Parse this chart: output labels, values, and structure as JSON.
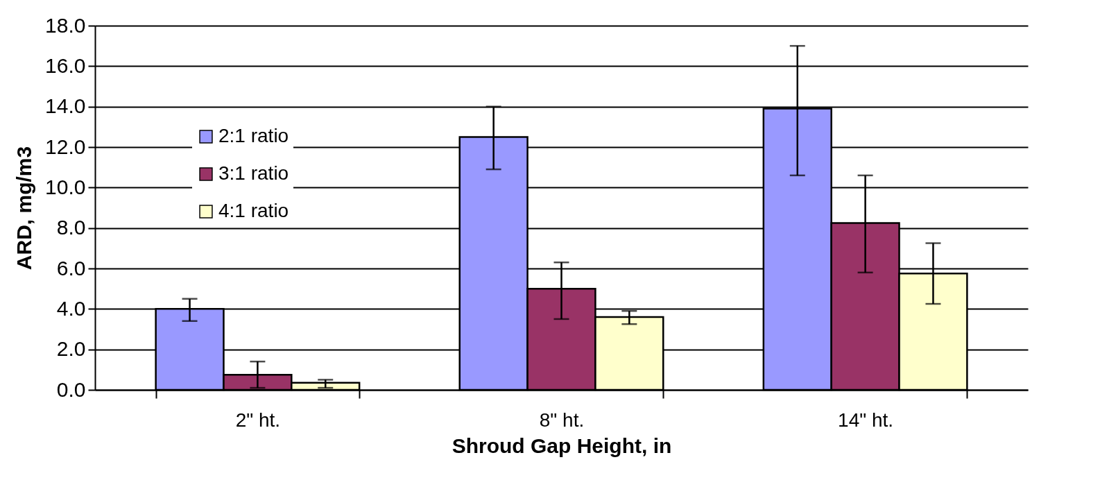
{
  "chart_data": {
    "type": "bar",
    "xlabel": "Shroud Gap Height, in",
    "ylabel": "ARD, mg/m3",
    "categories": [
      "2\" ht.",
      "8\" ht.",
      "14\" ht."
    ],
    "series": [
      {
        "name": "2:1 ratio",
        "color": "#9999ff",
        "values": [
          4.0,
          12.5,
          13.9
        ],
        "errors": [
          [
            3.4,
            4.5
          ],
          [
            10.9,
            14.0
          ],
          [
            10.6,
            17.0
          ]
        ]
      },
      {
        "name": "3:1 ratio",
        "color": "#993366",
        "values": [
          0.75,
          5.0,
          8.25
        ],
        "errors": [
          [
            0.1,
            1.4
          ],
          [
            3.5,
            6.3
          ],
          [
            5.8,
            10.6
          ]
        ]
      },
      {
        "name": "4:1 ratio",
        "color": "#ffffcc",
        "values": [
          0.35,
          3.6,
          5.75
        ],
        "errors": [
          [
            0.1,
            0.5
          ],
          [
            3.25,
            3.9
          ],
          [
            4.25,
            7.25
          ]
        ]
      }
    ],
    "ylim": [
      0,
      18
    ],
    "yticks": [
      {
        "value": 0,
        "label": "0.0"
      },
      {
        "value": 2,
        "label": "2.0"
      },
      {
        "value": 4,
        "label": "4.0"
      },
      {
        "value": 6,
        "label": "6.0"
      },
      {
        "value": 8,
        "label": "8.0"
      },
      {
        "value": 10,
        "label": "10.0"
      },
      {
        "value": 12,
        "label": "12.0"
      },
      {
        "value": 14,
        "label": "14.0"
      },
      {
        "value": 16,
        "label": "16.0"
      },
      {
        "value": 18,
        "label": "18.0"
      }
    ],
    "grid": "y",
    "legend": "top left"
  }
}
